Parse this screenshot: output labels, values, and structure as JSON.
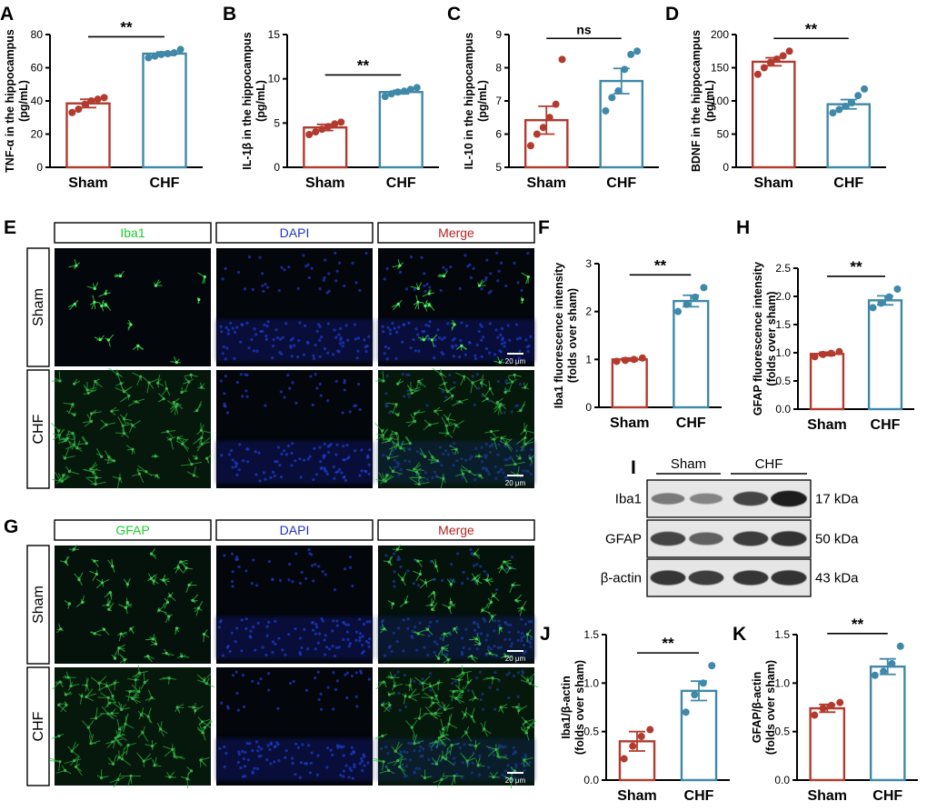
{
  "colors": {
    "sham": "#b23a2e",
    "chf": "#3f88a8",
    "iba1_text": "#22cc33",
    "dapi_text": "#2233bb",
    "merge_text": "#b32424"
  },
  "chart_data": [
    {
      "id": "A",
      "type": "bar",
      "panel_label": "A",
      "categories": [
        "Sham",
        "CHF"
      ],
      "values": [
        38.5,
        68.5
      ],
      "errors": [
        2.5,
        1.0
      ],
      "points": [
        [
          33,
          35,
          38,
          40,
          41,
          42
        ],
        [
          66,
          67,
          68,
          68.5,
          69,
          71
        ]
      ],
      "ylabel_lines": [
        "TNF-α in the hippocampus",
        "(pg/mL)"
      ],
      "ylim": [
        0,
        80
      ],
      "yticks": [
        0,
        20,
        40,
        60,
        80
      ],
      "tick_labels": [
        "0",
        "20",
        "40",
        "60",
        "80"
      ],
      "significance": "**"
    },
    {
      "id": "B",
      "type": "bar",
      "panel_label": "B",
      "categories": [
        "Sham",
        "CHF"
      ],
      "values": [
        4.5,
        8.5
      ],
      "errors": [
        0.35,
        0.2
      ],
      "points": [
        [
          3.7,
          4.0,
          4.3,
          4.6,
          4.9,
          5.1
        ],
        [
          8.0,
          8.3,
          8.5,
          8.6,
          8.8,
          9.0
        ]
      ],
      "ylabel_lines": [
        "IL-1β in the hippocampus",
        "(pg/mL)"
      ],
      "ylim": [
        0,
        15
      ],
      "yticks": [
        0,
        5,
        10,
        15
      ],
      "tick_labels": [
        "0",
        "5",
        "10",
        "15"
      ],
      "significance": "**"
    },
    {
      "id": "C",
      "type": "bar",
      "panel_label": "C",
      "categories": [
        "Sham",
        "CHF"
      ],
      "values": [
        6.42,
        7.6
      ],
      "errors": [
        0.42,
        0.38
      ],
      "points": [
        [
          5.65,
          6.0,
          6.2,
          6.5,
          6.9,
          8.25
        ],
        [
          6.7,
          7.1,
          7.3,
          7.95,
          8.4,
          8.5
        ]
      ],
      "ylabel_lines": [
        "IL-10 in the hippocampus",
        "(pg/mL)"
      ],
      "ylim": [
        5,
        9
      ],
      "yticks": [
        5,
        6,
        7,
        8,
        9
      ],
      "tick_labels": [
        "5",
        "6",
        "7",
        "8",
        "9"
      ],
      "significance": "ns"
    },
    {
      "id": "D",
      "type": "bar",
      "panel_label": "D",
      "categories": [
        "Sham",
        "CHF"
      ],
      "values": [
        159,
        95
      ],
      "errors": [
        6,
        7
      ],
      "points": [
        [
          140,
          150,
          158,
          163,
          168,
          175
        ],
        [
          82,
          87,
          92,
          97,
          108,
          118
        ]
      ],
      "ylabel_lines": [
        "BDNF in the hippocampus",
        "(pg/mL)"
      ],
      "ylim": [
        0,
        200
      ],
      "yticks": [
        0,
        50,
        100,
        150,
        200
      ],
      "tick_labels": [
        "0",
        "50",
        "100",
        "150",
        "200"
      ],
      "significance": "**"
    },
    {
      "id": "F",
      "type": "bar",
      "panel_label": "F",
      "categories": [
        "Sham",
        "CHF"
      ],
      "values": [
        1.0,
        2.22
      ],
      "errors": [
        0.03,
        0.12
      ],
      "points": [
        [
          0.96,
          0.98,
          1.0,
          1.03
        ],
        [
          2.0,
          2.15,
          2.3,
          2.5
        ]
      ],
      "ylabel_lines": [
        "Iba1 fluorescence intensity",
        "(folds over sham)"
      ],
      "ylim": [
        0,
        3
      ],
      "yticks": [
        0,
        1,
        2,
        3
      ],
      "tick_labels": [
        "0",
        "1",
        "2",
        "3"
      ],
      "significance": "**"
    },
    {
      "id": "H",
      "type": "bar",
      "panel_label": "H",
      "categories": [
        "Sham",
        "CHF"
      ],
      "values": [
        0.98,
        1.93
      ],
      "errors": [
        0.03,
        0.08
      ],
      "points": [
        [
          0.93,
          0.97,
          0.99,
          1.02
        ],
        [
          1.8,
          1.88,
          1.99,
          2.13
        ]
      ],
      "ylabel_lines": [
        "GFAP fluorescence intensity",
        "(folds over sham)"
      ],
      "ylim": [
        0,
        2.5
      ],
      "yticks": [
        0,
        0.5,
        1.0,
        1.5,
        2.0,
        2.5
      ],
      "tick_labels": [
        "0.0",
        "0.5",
        "1.0",
        "1.5",
        "2.0",
        "2.5"
      ],
      "significance": "**"
    },
    {
      "id": "J",
      "type": "bar",
      "panel_label": "J",
      "categories": [
        "Sham",
        "CHF"
      ],
      "values": [
        0.4,
        0.92
      ],
      "errors": [
        0.1,
        0.1
      ],
      "points": [
        [
          0.22,
          0.35,
          0.45,
          0.52
        ],
        [
          0.7,
          0.88,
          1.0,
          1.18
        ]
      ],
      "ylabel_lines": [
        "Iba1/β-actin",
        "(folds over sham)"
      ],
      "ylim": [
        0,
        1.5
      ],
      "yticks": [
        0,
        0.5,
        1.0,
        1.5
      ],
      "tick_labels": [
        "0.0",
        "0.5",
        "1.0",
        "1.5"
      ],
      "significance": "**"
    },
    {
      "id": "K",
      "type": "bar",
      "panel_label": "K",
      "categories": [
        "Sham",
        "CHF"
      ],
      "values": [
        0.74,
        1.17
      ],
      "errors": [
        0.04,
        0.08
      ],
      "points": [
        [
          0.67,
          0.74,
          0.77,
          0.8
        ],
        [
          1.08,
          1.12,
          1.2,
          1.38
        ]
      ],
      "ylabel_lines": [
        "GFAP/β-actin",
        "(folds over sham)"
      ],
      "ylim": [
        0,
        1.5
      ],
      "yticks": [
        0,
        0.5,
        1.0,
        1.5
      ],
      "tick_labels": [
        "0.0",
        "0.5",
        "1.0",
        "1.5"
      ],
      "significance": "**"
    }
  ],
  "microscopy": {
    "E": {
      "panel_label": "E",
      "channels": [
        "Iba1",
        "DAPI",
        "Merge"
      ],
      "rows": [
        "Sham",
        "CHF"
      ],
      "scale_bar": "20 μm",
      "green_density": [
        "sparse",
        "dense"
      ]
    },
    "G": {
      "panel_label": "G",
      "channels": [
        "GFAP",
        "DAPI",
        "Merge"
      ],
      "rows": [
        "Sham",
        "CHF"
      ],
      "scale_bar": "20 μm",
      "green_density": [
        "medium",
        "dense"
      ]
    }
  },
  "western_blot": {
    "panel_label": "I",
    "groups": [
      "Sham",
      "CHF"
    ],
    "proteins": [
      {
        "name": "Iba1",
        "size": "17 kDa",
        "intensities": [
          0.45,
          0.38,
          0.75,
          0.95
        ]
      },
      {
        "name": "GFAP",
        "size": "50 kDa",
        "intensities": [
          0.75,
          0.6,
          0.8,
          0.85
        ]
      },
      {
        "name": "β-actin",
        "size": "43 kDa",
        "intensities": [
          0.82,
          0.8,
          0.82,
          0.85
        ]
      }
    ]
  }
}
